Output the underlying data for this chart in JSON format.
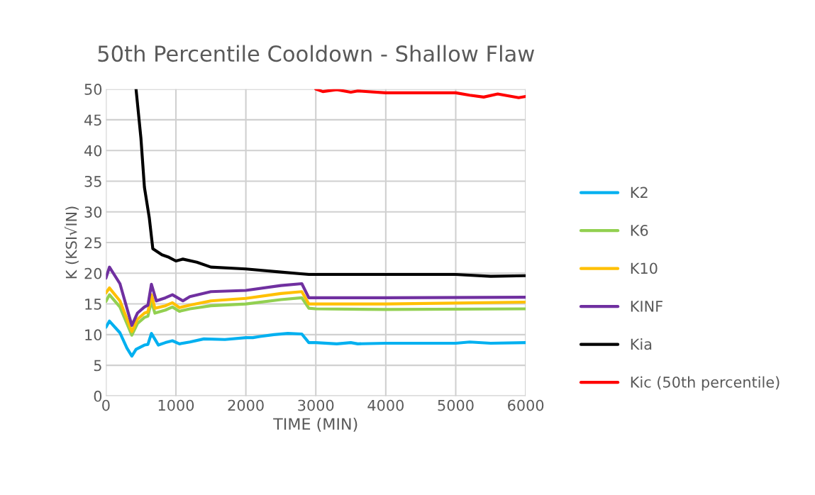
{
  "chart_data": {
    "type": "line",
    "title": "50th Percentile Cooldown - Shallow Flaw",
    "xlabel": "TIME (MIN)",
    "ylabel": "K (KSI√IN)",
    "xlim": [
      0,
      6000
    ],
    "xticks": [
      0,
      1000,
      2000,
      3000,
      4000,
      5000,
      6000
    ],
    "ylim": [
      0,
      50
    ],
    "yticks": [
      0,
      5,
      10,
      15,
      20,
      25,
      30,
      35,
      40,
      45,
      50
    ],
    "grid": true,
    "legend": "right",
    "line_style": "solid",
    "marker": "none",
    "series": [
      {
        "name": "K2",
        "color": "#00b0f0",
        "x": [
          0,
          50,
          200,
          300,
          370,
          430,
          550,
          600,
          650,
          750,
          850,
          950,
          1050,
          1200,
          1400,
          1700,
          2000,
          2100,
          2200,
          2400,
          2600,
          2800,
          2900,
          3000,
          3300,
          3500,
          3600,
          4000,
          5000,
          5200,
          5500,
          6000
        ],
        "values": [
          11.2,
          12.2,
          10.3,
          7.8,
          6.5,
          7.6,
          8.3,
          8.4,
          10.2,
          8.3,
          8.7,
          9,
          8.5,
          8.8,
          9.3,
          9.2,
          9.5,
          9.5,
          9.7,
          10,
          10.2,
          10.1,
          8.7,
          8.7,
          8.5,
          8.7,
          8.5,
          8.6,
          8.6,
          8.8,
          8.6,
          8.7
        ]
      },
      {
        "name": "K6",
        "color": "#92d050",
        "x": [
          0,
          50,
          200,
          370,
          450,
          550,
          600,
          650,
          700,
          850,
          950,
          1050,
          1200,
          1500,
          2000,
          2500,
          2800,
          2900,
          3000,
          4000,
          6000
        ],
        "values": [
          15.4,
          16.5,
          14.5,
          9.9,
          11.8,
          12.8,
          13,
          15.4,
          13.5,
          14,
          14.5,
          13.8,
          14.2,
          14.7,
          15,
          15.7,
          16,
          14.3,
          14.2,
          14.1,
          14.2
        ]
      },
      {
        "name": "K10",
        "color": "#ffc000",
        "x": [
          0,
          50,
          200,
          370,
          450,
          550,
          600,
          650,
          700,
          850,
          950,
          1050,
          1200,
          1500,
          2000,
          2500,
          2800,
          2900,
          3000,
          4000,
          6000
        ],
        "values": [
          16.8,
          17.6,
          15.5,
          10.5,
          12.5,
          13.5,
          13.7,
          16.5,
          14.3,
          14.7,
          15.2,
          14.4,
          14.8,
          15.5,
          15.9,
          16.7,
          17,
          15,
          15,
          15,
          15.3
        ]
      },
      {
        "name": "KINF",
        "color": "#7030a0",
        "x": [
          0,
          50,
          200,
          370,
          450,
          550,
          600,
          650,
          720,
          850,
          950,
          1100,
          1200,
          1500,
          2000,
          2500,
          2800,
          2900,
          3000,
          3500,
          4000,
          6000
        ],
        "values": [
          19.2,
          21,
          18.3,
          11.5,
          13.5,
          14.5,
          14.8,
          18.2,
          15.5,
          16,
          16.5,
          15.5,
          16.2,
          17,
          17.2,
          18,
          18.3,
          16,
          16,
          16,
          16,
          16.1
        ]
      },
      {
        "name": "Kia",
        "color": "#000000",
        "x": [
          430,
          500,
          550,
          620,
          670,
          800,
          900,
          1000,
          1100,
          1300,
          1500,
          2000,
          2500,
          2900,
          5000,
          5500,
          6000
        ],
        "values": [
          50,
          42,
          34,
          29,
          24,
          23,
          22.6,
          22,
          22.3,
          21.8,
          21,
          20.7,
          20.2,
          19.8,
          19.8,
          19.5,
          19.6
        ]
      },
      {
        "name": "Kic (50th percentile)",
        "color": "#ff0000",
        "x": [
          3000,
          3100,
          3300,
          3500,
          3600,
          4000,
          5000,
          5200,
          5400,
          5600,
          5900,
          6000
        ],
        "values": [
          50,
          49.6,
          49.9,
          49.5,
          49.7,
          49.4,
          49.4,
          49,
          48.7,
          49.2,
          48.6,
          48.8
        ]
      }
    ]
  }
}
